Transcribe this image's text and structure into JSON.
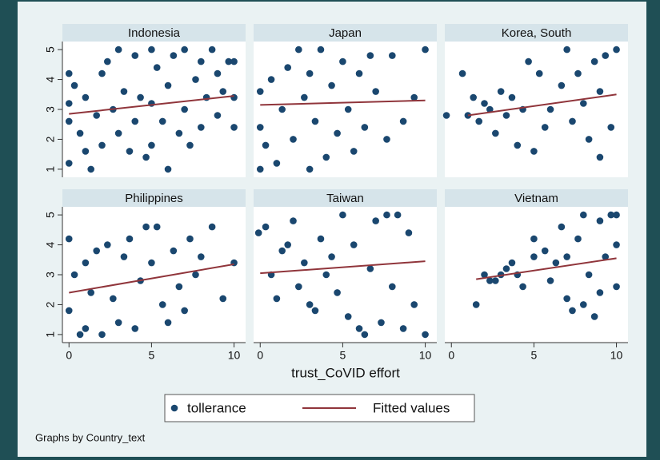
{
  "chart_data": {
    "type": "scatter",
    "xlabel": "trust_CoVID effort",
    "note": "Graphs by Country_text",
    "xlim": [
      -0.4,
      10.7
    ],
    "ylim": [
      0.73,
      5.27
    ],
    "xticks": [
      0,
      5,
      10
    ],
    "yticks": [
      1,
      2,
      3,
      4,
      5
    ],
    "series": [
      {
        "name": "tollerance",
        "color": "#1a476f"
      },
      {
        "name": "Fitted values",
        "color": "#90353b"
      }
    ],
    "panels": [
      {
        "title": "Indonesia",
        "x": [
          0,
          0,
          0,
          0,
          0.33,
          0.67,
          1,
          1,
          1.33,
          1.67,
          2,
          2,
          2.33,
          2.67,
          3,
          3,
          3.33,
          3.67,
          4,
          4,
          4.33,
          4.67,
          5,
          5,
          5,
          5.33,
          5.67,
          6,
          6,
          6.33,
          6.67,
          7,
          7,
          7.33,
          7.67,
          8,
          8,
          8.33,
          8.67,
          9,
          9,
          9.33,
          9.67,
          10,
          10,
          10
        ],
        "y": [
          1.2,
          2.6,
          3.2,
          4.2,
          3.8,
          2.2,
          1.6,
          3.4,
          1,
          2.8,
          4.2,
          1.8,
          4.6,
          3,
          5,
          2.2,
          3.6,
          1.6,
          4.8,
          2.6,
          3.4,
          1.4,
          5,
          1.8,
          3.2,
          4.4,
          2.6,
          1,
          3.8,
          4.8,
          2.2,
          5,
          3,
          1.8,
          4,
          4.6,
          2.4,
          3.4,
          5,
          2.8,
          4.2,
          3.6,
          4.6,
          2.4,
          3.4,
          4.6
        ],
        "fit_x": [
          0,
          10
        ],
        "fit_y": [
          2.85,
          3.45
        ]
      },
      {
        "title": "Japan",
        "x": [
          0,
          0,
          0,
          0.33,
          0.67,
          1,
          1.33,
          1.67,
          2,
          2.33,
          2.67,
          3,
          3,
          3.33,
          3.67,
          4,
          4.33,
          4.67,
          5,
          5.33,
          5.67,
          6,
          6.33,
          6.67,
          7,
          7.67,
          8,
          8.67,
          9.33,
          10
        ],
        "y": [
          1,
          2.4,
          3.6,
          1.8,
          4,
          1.2,
          3,
          4.4,
          2,
          5,
          3.4,
          1,
          4.2,
          2.6,
          5,
          1.4,
          3.8,
          2.2,
          4.6,
          3,
          1.6,
          4.2,
          2.4,
          4.8,
          3.6,
          2,
          4.8,
          2.6,
          3.4,
          5
        ],
        "fit_x": [
          0,
          10
        ],
        "fit_y": [
          3.15,
          3.3
        ]
      },
      {
        "title": "Korea, South",
        "x": [
          -0.3,
          0.67,
          1,
          1.33,
          1.67,
          2,
          2.33,
          2.67,
          3,
          3.33,
          3.67,
          4,
          4.33,
          4.67,
          5,
          5.33,
          5.67,
          6,
          6.67,
          7,
          7.33,
          7.67,
          8,
          8.33,
          8.67,
          9,
          9,
          9.33,
          9.67,
          10
        ],
        "y": [
          2.8,
          4.2,
          2.8,
          3.4,
          2.6,
          3.2,
          3,
          2.2,
          3.6,
          2.8,
          3.4,
          1.8,
          3,
          4.6,
          1.6,
          4.2,
          2.4,
          3,
          3.8,
          5,
          2.6,
          4.2,
          3.2,
          2,
          4.6,
          1.4,
          3.6,
          4.8,
          2.4,
          5
        ],
        "fit_x": [
          1,
          10
        ],
        "fit_y": [
          2.8,
          3.5
        ]
      },
      {
        "title": "Philippines",
        "x": [
          0,
          0,
          0.33,
          0.67,
          1,
          1,
          1.33,
          1.67,
          2,
          2.33,
          2.67,
          3,
          3.33,
          3.67,
          4,
          4.33,
          4.67,
          5,
          5.33,
          5.67,
          6,
          6.33,
          6.67,
          7,
          7.33,
          7.67,
          8,
          8.67,
          9.33,
          10
        ],
        "y": [
          1.8,
          4.2,
          3,
          1,
          3.4,
          1.2,
          2.4,
          3.8,
          1,
          4,
          2.2,
          1.4,
          3.6,
          4.2,
          1.2,
          2.8,
          4.6,
          3.4,
          4.6,
          2,
          1.4,
          3.8,
          2.6,
          1.8,
          4.2,
          3,
          3.6,
          4.6,
          2.2,
          3.4
        ],
        "fit_x": [
          0,
          10
        ],
        "fit_y": [
          2.4,
          3.35
        ]
      },
      {
        "title": "Taiwan",
        "x": [
          -0.1,
          0.33,
          0.67,
          1,
          1.33,
          1.67,
          2,
          2.33,
          2.67,
          3,
          3.33,
          3.67,
          4,
          4.33,
          4.67,
          5,
          5.33,
          5.67,
          6,
          6.33,
          6.67,
          7,
          7.33,
          7.67,
          8,
          8.33,
          8.67,
          9,
          9.33,
          10
        ],
        "y": [
          4.4,
          4.6,
          3,
          2.2,
          3.8,
          4,
          4.8,
          2.6,
          3.4,
          2,
          1.8,
          4.2,
          3,
          3.6,
          2.4,
          5,
          1.6,
          4,
          1.2,
          1,
          3.2,
          4.8,
          1.4,
          5,
          2.6,
          5,
          1.2,
          4.4,
          2,
          1
        ],
        "fit_x": [
          0,
          10
        ],
        "fit_y": [
          3.05,
          3.45
        ]
      },
      {
        "title": "Vietnam",
        "x": [
          1.5,
          2,
          2.33,
          2.67,
          3,
          3.33,
          3.67,
          4,
          4.33,
          5,
          5,
          5.67,
          6,
          6.33,
          6.67,
          7,
          7,
          7.33,
          7.67,
          8,
          8,
          8.33,
          8.67,
          9,
          9,
          9.33,
          9.67,
          10,
          10,
          10
        ],
        "y": [
          2,
          3,
          2.8,
          2.8,
          3,
          3.2,
          3.4,
          3,
          2.6,
          4.2,
          3.6,
          3.8,
          2.8,
          3.4,
          4.6,
          2.2,
          3.6,
          1.8,
          4.2,
          2,
          5,
          3,
          1.6,
          4.8,
          2.4,
          3.6,
          5,
          2.6,
          4,
          5
        ],
        "fit_x": [
          1.5,
          10
        ],
        "fit_y": [
          2.85,
          3.55
        ]
      }
    ]
  }
}
